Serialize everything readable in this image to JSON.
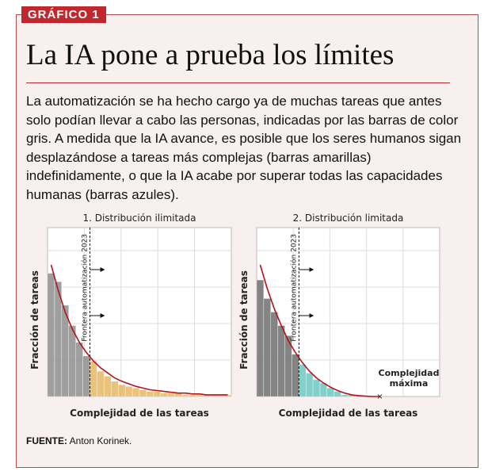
{
  "tag": "GRÁFICO 1",
  "title": "La IA pone a prueba los límites",
  "body": "La automatización se ha hecho cargo ya de muchas tareas que antes solo podían llevar a cabo las personas, indicadas por las barras de color gris. A medida que la IA avance, es posible que los seres humanos sigan desplazándose a tareas más complejas (barras amarillas) indefinidamente, o que la IA acabe por superar todas las capacidades humanas (barras azules).",
  "source_label": "FUENTE:",
  "source": "Anton Korinek.",
  "chart_data": [
    {
      "type": "bar",
      "title": "1. Distribución ilimitada",
      "xlabel": "Complejidad de las tareas",
      "ylabel": "Fracción de tareas",
      "vline_label": "Frontera automatización 2023",
      "ylim": [
        0,
        100
      ],
      "series": [
        {
          "color": "#8f8f8f",
          "values": [
            73,
            68,
            54,
            42,
            32,
            24,
            null,
            null,
            null,
            null,
            null,
            null,
            null,
            null,
            null,
            null,
            null,
            null,
            null,
            null,
            null,
            null,
            null,
            null,
            null,
            null
          ]
        },
        {
          "color": "#e6b866",
          "values": [
            null,
            null,
            null,
            null,
            null,
            null,
            21,
            15,
            12,
            9,
            7,
            6,
            5,
            4,
            3,
            3,
            2,
            2,
            2,
            1,
            1,
            1,
            1,
            1,
            1,
            1
          ]
        }
      ],
      "line": {
        "color": "#b3141b",
        "values": [
          78,
          63,
          50,
          40,
          32,
          26,
          21,
          17,
          14,
          11,
          9,
          7.5,
          6,
          5,
          4,
          3.5,
          3,
          2.5,
          2,
          2,
          1.5,
          1.5,
          1,
          1,
          1,
          1
        ]
      }
    },
    {
      "type": "bar",
      "title": "2. Distribución limitada",
      "xlabel": "Complejidad de las tareas",
      "ylabel": "Fracción de tareas",
      "vline_label": "Frontera automatización 2023",
      "annotation": [
        "Complejidad",
        "máxima"
      ],
      "ylim": [
        0,
        100
      ],
      "series": [
        {
          "color": "#6f6f6f",
          "values": [
            69,
            58,
            50,
            42,
            36,
            25,
            null,
            null,
            null,
            null,
            null,
            null,
            null,
            null,
            null,
            null,
            null,
            null,
            null,
            null,
            null,
            null,
            null,
            null,
            null,
            null
          ]
        },
        {
          "color": "#6cc8c0",
          "values": [
            null,
            null,
            null,
            null,
            null,
            null,
            19,
            14,
            10,
            8,
            5,
            3,
            1,
            1,
            null,
            null,
            null,
            null,
            null,
            null,
            null,
            null,
            null,
            null,
            null,
            null
          ]
        }
      ],
      "line": {
        "color": "#b3141b",
        "values": [
          78,
          64,
          52,
          42,
          33,
          26,
          20,
          15,
          11,
          8,
          5.5,
          3.5,
          2,
          1,
          0.5,
          0.2,
          0,
          0,
          null,
          null,
          null,
          null,
          null,
          null,
          null,
          null
        ]
      }
    }
  ]
}
